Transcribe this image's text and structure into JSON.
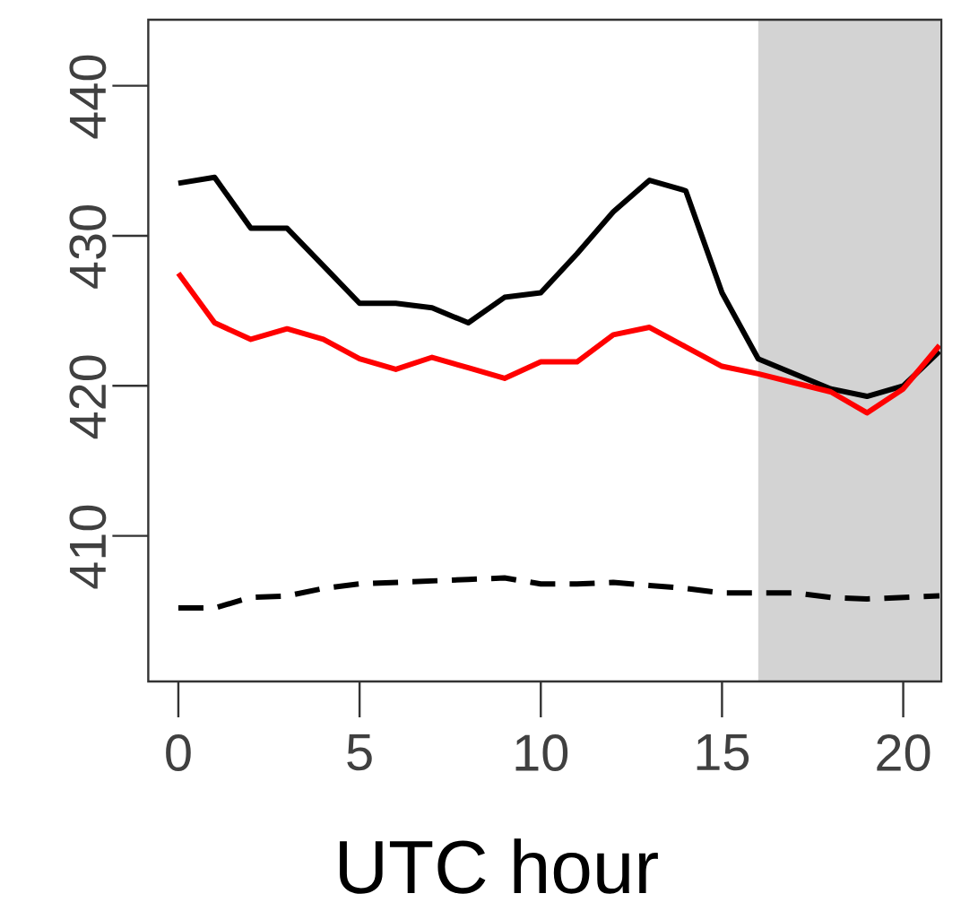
{
  "chart_data": {
    "type": "line",
    "xlabel": "UTC hour",
    "x": [
      0,
      1,
      2,
      3,
      4,
      5,
      6,
      7,
      8,
      9,
      10,
      11,
      12,
      13,
      14,
      15,
      16,
      17,
      18,
      19,
      20,
      21
    ],
    "series": [
      {
        "color": "#000000",
        "line_style": "solid",
        "values": [
          433.5,
          433.9,
          430.5,
          430.5,
          428.0,
          425.5,
          425.5,
          425.2,
          424.2,
          425.9,
          426.2,
          428.8,
          431.6,
          433.7,
          433.0,
          426.2,
          421.8,
          420.8,
          419.8,
          419.3,
          420.0,
          422.3
        ]
      },
      {
        "color": "#ff0000",
        "line_style": "solid",
        "values": [
          427.5,
          424.2,
          423.1,
          423.8,
          423.1,
          421.8,
          421.1,
          421.9,
          421.2,
          420.5,
          421.6,
          421.6,
          423.4,
          423.9,
          422.6,
          421.3,
          420.8,
          420.2,
          419.6,
          418.2,
          419.8,
          422.7
        ]
      },
      {
        "color": "#000000",
        "line_style": "dashed",
        "values": [
          405.2,
          405.2,
          405.9,
          406.0,
          406.5,
          406.8,
          406.9,
          407.0,
          407.1,
          407.2,
          406.8,
          406.8,
          406.9,
          406.7,
          406.5,
          406.2,
          406.2,
          406.2,
          405.9,
          405.8,
          405.9,
          406.0
        ]
      }
    ],
    "xlim": [
      -0.83,
      21.05
    ],
    "ylim": [
      400.3,
      444.4
    ],
    "xticks": [
      0,
      5,
      10,
      15,
      20
    ],
    "yticks": [
      410,
      420,
      430,
      440
    ],
    "bands": [
      {
        "axis": "x",
        "from": 16,
        "to": 21,
        "color": "#d3d3d3"
      }
    ],
    "grid": false
  }
}
